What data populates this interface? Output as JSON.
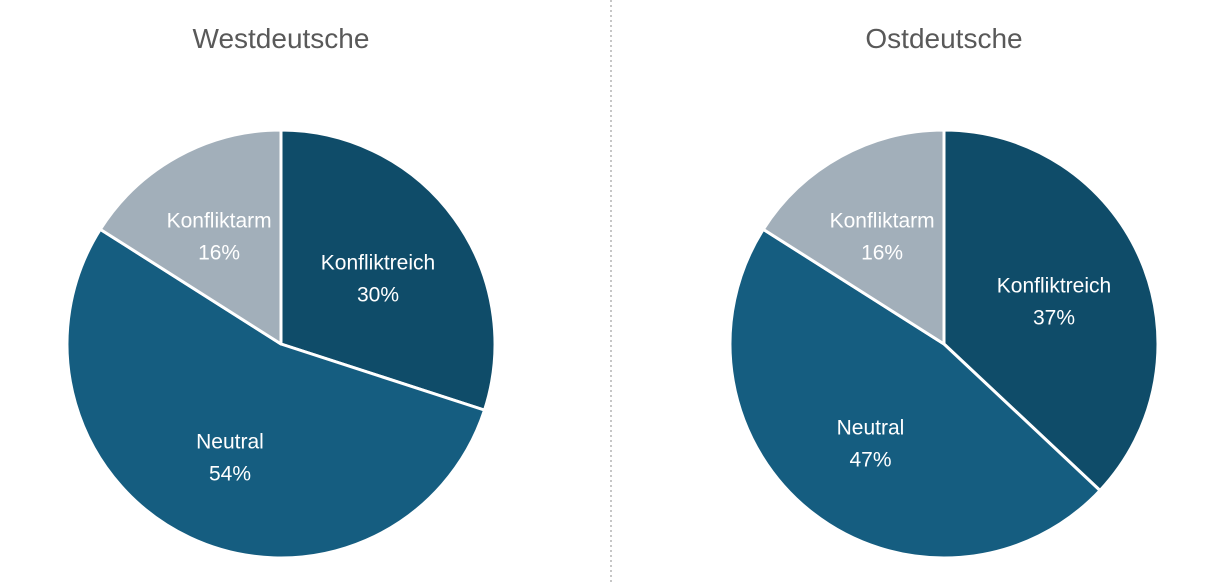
{
  "chart_data": [
    {
      "type": "pie",
      "title": "Westdeutsche",
      "slices": [
        {
          "label": "Konfliktreich",
          "value": 30,
          "value_label": "30%",
          "color": "#0f4c69"
        },
        {
          "label": "Neutral",
          "value": 54,
          "value_label": "54%",
          "color": "#155d80"
        },
        {
          "label": "Konfliktarm",
          "value": 16,
          "value_label": "16%",
          "color": "#a2afba"
        }
      ],
      "start": "12 o'clock",
      "direction": "clockwise",
      "legend": "none"
    },
    {
      "type": "pie",
      "title": "Ostdeutsche",
      "slices": [
        {
          "label": "Konfliktreich",
          "value": 37,
          "value_label": "37%",
          "color": "#0f4c69"
        },
        {
          "label": "Neutral",
          "value": 47,
          "value_label": "47%",
          "color": "#155d80"
        },
        {
          "label": "Konfliktarm",
          "value": 16,
          "value_label": "16%",
          "color": "#a2afba"
        }
      ],
      "start": "12 o'clock",
      "direction": "clockwise",
      "legend": "none"
    }
  ]
}
